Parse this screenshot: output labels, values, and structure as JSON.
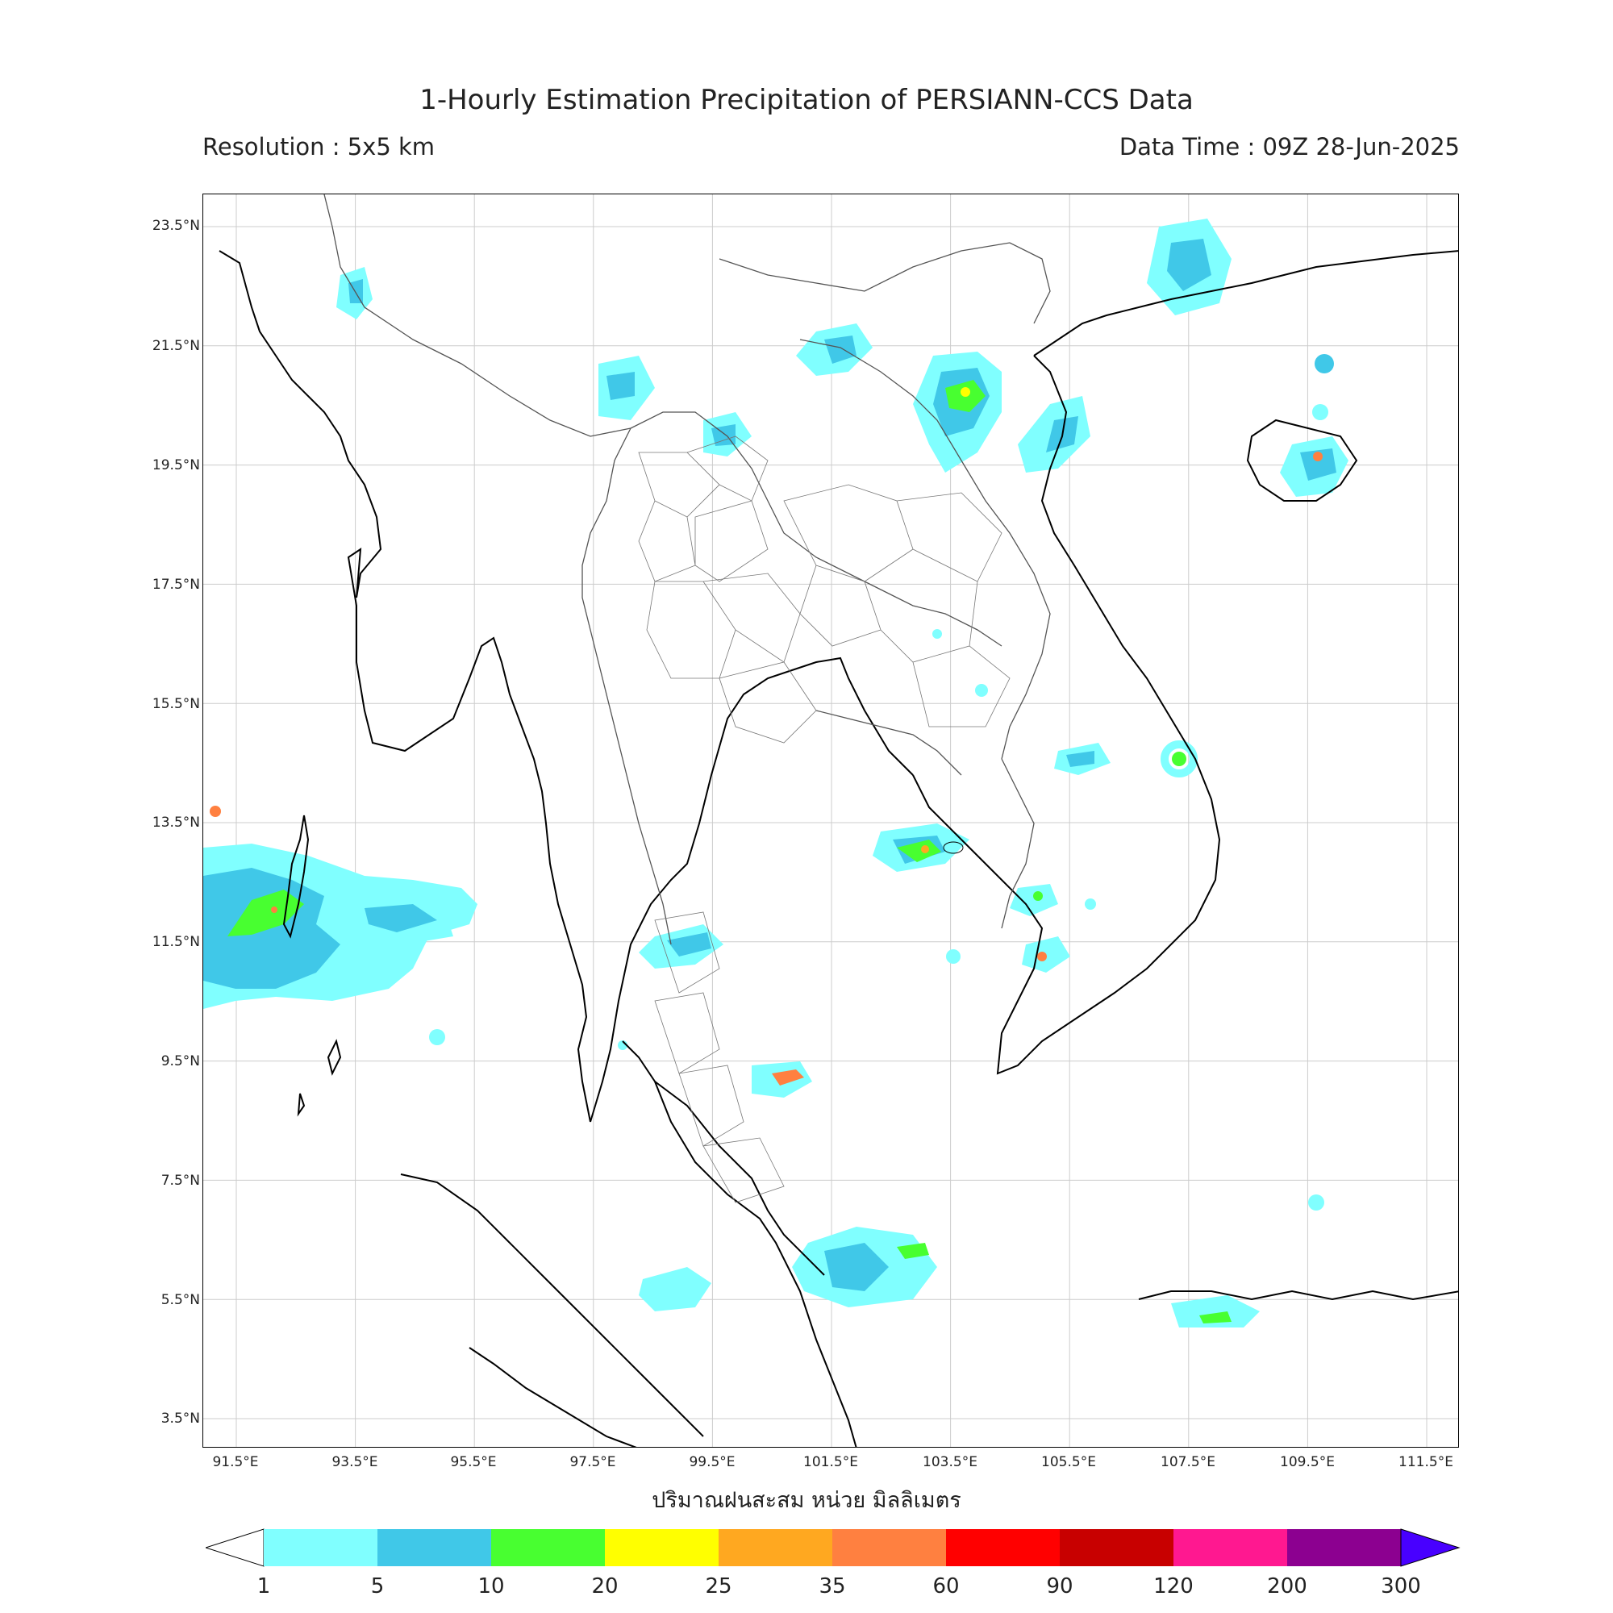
{
  "header": {
    "title": "1-Hourly Estimation Precipitation of PERSIANN-CCS Data",
    "resolution": "Resolution : 5x5 km",
    "data_time": "Data Time : 09Z 28-Jun-2025"
  },
  "axes": {
    "lat_labels": [
      "23.5°N",
      "21.5°N",
      "19.5°N",
      "17.5°N",
      "15.5°N",
      "13.5°N",
      "11.5°N",
      "9.5°N",
      "7.5°N",
      "5.5°N",
      "3.5°N"
    ],
    "lon_labels": [
      "91.5°E",
      "93.5°E",
      "95.5°E",
      "97.5°E",
      "99.5°E",
      "101.5°E",
      "103.5°E",
      "105.5°E",
      "107.5°E",
      "109.5°E",
      "111.5°E"
    ],
    "caption": "ปริมาณฝนสะสม หน่วย มิลลิเมตร"
  },
  "colorbar": {
    "labels": [
      "1",
      "5",
      "10",
      "20",
      "25",
      "35",
      "60",
      "90",
      "120",
      "200",
      "300"
    ],
    "colors": [
      "#80ffff",
      "#40c8e8",
      "#48ff30",
      "#ffff00",
      "#ffa820",
      "#ff8040",
      "#ff0000",
      "#c80000",
      "#ff1890",
      "#8c0090"
    ],
    "extend_colors": {
      "under": "#ffffff",
      "over": "#4800ff"
    }
  },
  "map": {
    "grid": true,
    "colors": {
      "coast": "#000000",
      "border": "#555555",
      "province": "#777777",
      "grid": "#cccccc"
    }
  }
}
